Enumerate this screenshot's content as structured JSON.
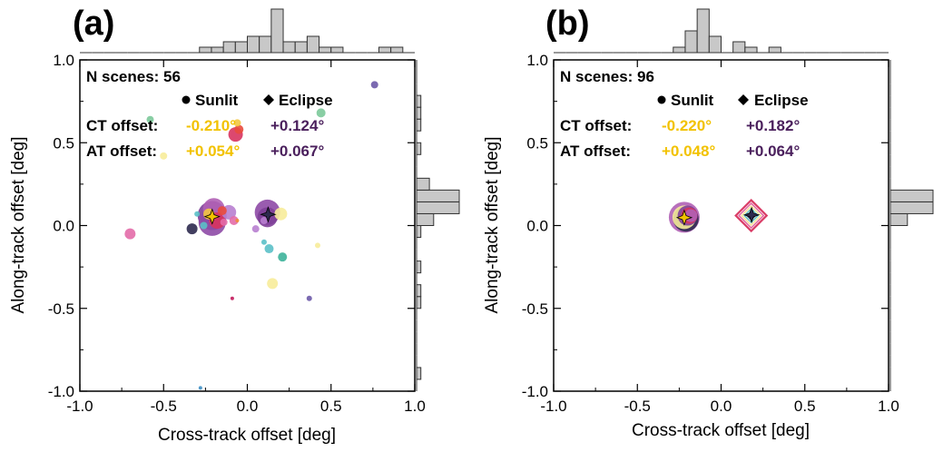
{
  "chart_data": [
    {
      "type": "scatter",
      "panel_label": "(a)",
      "xlabel": "Cross-track offset [deg]",
      "ylabel": "Along-track offset [deg]",
      "xlim": [
        -1.0,
        1.0
      ],
      "ylim": [
        -1.0,
        1.0
      ],
      "xticks": [
        "-1.0",
        "-0.5",
        "0.0",
        "0.5",
        "1.0"
      ],
      "yticks": [
        "-1.0",
        "-0.5",
        "0.0",
        "0.5",
        "1.0"
      ],
      "n_scenes_label": "N scenes: 56",
      "legend": {
        "sunlit": "Sunlit",
        "eclipse": "Eclipse"
      },
      "rows": [
        {
          "label": "CT offset:",
          "sunlit": "-0.210°",
          "eclipse": "+0.124°"
        },
        {
          "label": "AT offset:",
          "sunlit": "+0.054°",
          "eclipse": "+0.067°"
        }
      ],
      "mean_sunlit": {
        "x": -0.21,
        "y": 0.054
      },
      "mean_eclipse": {
        "x": 0.124,
        "y": 0.067
      },
      "points": [
        {
          "x": -0.21,
          "y": 0.06,
          "s": 16,
          "color": "#7e3f98",
          "m": "o"
        },
        {
          "x": -0.21,
          "y": 0.02,
          "s": 15,
          "color": "#8e4aa6",
          "m": "o"
        },
        {
          "x": -0.2,
          "y": 0.1,
          "s": 12,
          "color": "#b061b5",
          "m": "o"
        },
        {
          "x": -0.18,
          "y": 0.03,
          "s": 9,
          "color": "#d8345f",
          "m": "o"
        },
        {
          "x": -0.23,
          "y": 0.07,
          "s": 6,
          "color": "#f2c641",
          "m": "o"
        },
        {
          "x": -0.15,
          "y": 0.09,
          "s": 5,
          "color": "#e94b3c",
          "m": "o"
        },
        {
          "x": -0.14,
          "y": 0.02,
          "s": 4,
          "color": "#e36ba8",
          "m": "o"
        },
        {
          "x": -0.26,
          "y": 0.0,
          "s": 4,
          "color": "#5bc0c8",
          "m": "o"
        },
        {
          "x": -0.3,
          "y": 0.07,
          "s": 3,
          "color": "#5bc0c8",
          "m": "o"
        },
        {
          "x": -0.11,
          "y": 0.08,
          "s": 8,
          "color": "#b87fd0",
          "m": "o"
        },
        {
          "x": -0.08,
          "y": 0.03,
          "s": 5,
          "color": "#e36ba8",
          "m": "o"
        },
        {
          "x": -0.06,
          "y": 0.03,
          "s": 2,
          "color": "#f08c3a",
          "m": "o"
        },
        {
          "x": -0.33,
          "y": -0.02,
          "s": 6,
          "color": "#2e2a4f",
          "m": "o"
        },
        {
          "x": -0.07,
          "y": 0.55,
          "s": 8,
          "color": "#d8345f",
          "m": "o"
        },
        {
          "x": -0.05,
          "y": 0.58,
          "s": 5,
          "color": "#e94b3c",
          "m": "o"
        },
        {
          "x": -0.06,
          "y": 0.62,
          "s": 4,
          "color": "#f2c641",
          "m": "o"
        },
        {
          "x": -0.58,
          "y": 0.64,
          "s": 4,
          "color": "#7cc99a",
          "m": "o"
        },
        {
          "x": 0.76,
          "y": 0.85,
          "s": 4,
          "color": "#6d5aa8",
          "m": "o"
        },
        {
          "x": 0.44,
          "y": 0.68,
          "s": 5,
          "color": "#7cc99a",
          "m": "o"
        },
        {
          "x": -0.5,
          "y": 0.42,
          "s": 4,
          "color": "#f7ec9a",
          "m": "o"
        },
        {
          "x": 0.12,
          "y": 0.08,
          "s": 14,
          "color": "#8e4aa6",
          "m": "o"
        },
        {
          "x": 0.12,
          "y": 0.05,
          "s": 11,
          "color": "#7e3f98",
          "m": "o"
        },
        {
          "x": 0.2,
          "y": 0.07,
          "s": 7,
          "color": "#f7ec9a",
          "m": "o"
        },
        {
          "x": 0.1,
          "y": 0.03,
          "s": 4,
          "color": "#b87fd0",
          "m": "o"
        },
        {
          "x": -0.7,
          "y": -0.05,
          "s": 6,
          "color": "#e36ba8",
          "m": "o"
        },
        {
          "x": 0.05,
          "y": -0.02,
          "s": 4,
          "color": "#b87fd0",
          "m": "o"
        },
        {
          "x": 0.1,
          "y": -0.1,
          "s": 3,
          "color": "#5bc0c8",
          "m": "o"
        },
        {
          "x": 0.13,
          "y": -0.14,
          "s": 5,
          "color": "#5bc0c8",
          "m": "o"
        },
        {
          "x": 0.21,
          "y": -0.19,
          "s": 5,
          "color": "#3db39a",
          "m": "o"
        },
        {
          "x": 0.42,
          "y": -0.12,
          "s": 3,
          "color": "#f7ec9a",
          "m": "o"
        },
        {
          "x": 0.15,
          "y": -0.35,
          "s": 6,
          "color": "#f7ec9a",
          "m": "o"
        },
        {
          "x": -0.09,
          "y": -0.44,
          "s": 2,
          "color": "#c2185b",
          "m": "o"
        },
        {
          "x": 0.37,
          "y": -0.44,
          "s": 3,
          "color": "#6d5aa8",
          "m": "o"
        },
        {
          "x": -0.28,
          "y": -0.98,
          "s": 2,
          "color": "#3f8fc4",
          "m": "o"
        }
      ],
      "hist_top": {
        "edges": [
          -1.0,
          1.0
        ],
        "counts": [
          0,
          0,
          0,
          0,
          0,
          0,
          0,
          0,
          0,
          0,
          1,
          1,
          2,
          2,
          3,
          3,
          8,
          2,
          2,
          3,
          1,
          1,
          0,
          0,
          0,
          1,
          1,
          0
        ]
      },
      "hist_right": {
        "edges": [
          -1.0,
          1.0
        ],
        "counts": [
          0,
          1,
          0,
          0,
          0,
          0,
          0,
          1,
          1,
          0,
          1,
          0,
          0,
          1,
          4,
          10,
          10,
          3,
          0,
          0,
          1,
          0,
          1,
          1,
          1,
          0,
          0,
          0
        ]
      }
    },
    {
      "type": "scatter",
      "panel_label": "(b)",
      "xlabel": "Cross-track offset [deg]",
      "ylabel": "Along-track offset [deg]",
      "xlim": [
        -1.0,
        1.0
      ],
      "ylim": [
        -1.0,
        1.0
      ],
      "xticks": [
        "-1.0",
        "-0.5",
        "0.0",
        "0.5",
        "1.0"
      ],
      "yticks": [
        "-1.0",
        "-0.5",
        "0.0",
        "0.5",
        "1.0"
      ],
      "n_scenes_label": "N scenes: 96",
      "legend": {
        "sunlit": "Sunlit",
        "eclipse": "Eclipse"
      },
      "rows": [
        {
          "label": "CT offset:",
          "sunlit": "-0.220°",
          "eclipse": "+0.182°"
        },
        {
          "label": "AT offset:",
          "sunlit": "+0.048°",
          "eclipse": "+0.064°"
        }
      ],
      "mean_sunlit": {
        "x": -0.22,
        "y": 0.048
      },
      "mean_eclipse": {
        "x": 0.182,
        "y": 0.064
      },
      "points": [
        {
          "x": -0.22,
          "y": 0.05,
          "s": 17,
          "color": "#b061b5",
          "m": "o"
        },
        {
          "x": -0.21,
          "y": 0.04,
          "s": 14,
          "color": "#2e2a4f",
          "m": "o"
        },
        {
          "x": -0.22,
          "y": 0.05,
          "s": 13,
          "color": "#f7ec9a",
          "m": "o"
        },
        {
          "x": -0.2,
          "y": 0.06,
          "s": 11,
          "color": "#7e3f98",
          "m": "o"
        },
        {
          "x": -0.19,
          "y": 0.06,
          "s": 9,
          "color": "#d8345f",
          "m": "o"
        },
        {
          "x": -0.18,
          "y": 0.06,
          "s": 7,
          "color": "#b061b5",
          "m": "o"
        },
        {
          "x": 0.18,
          "y": 0.06,
          "s": 19,
          "color": "#d8345f",
          "m": "d"
        },
        {
          "x": 0.18,
          "y": 0.06,
          "s": 15,
          "color": "#e36ba8",
          "m": "d"
        },
        {
          "x": 0.18,
          "y": 0.06,
          "s": 12,
          "color": "#f7ec9a",
          "m": "d"
        },
        {
          "x": 0.18,
          "y": 0.06,
          "s": 9,
          "color": "#5bc0c8",
          "m": "d"
        },
        {
          "x": 0.18,
          "y": 0.06,
          "s": 6,
          "color": "#2e2a4f",
          "m": "d"
        }
      ],
      "hist_top": {
        "edges": [
          -1.0,
          1.0
        ],
        "counts": [
          0,
          0,
          0,
          0,
          0,
          0,
          0,
          0,
          0,
          0,
          1,
          4,
          8,
          3,
          0,
          2,
          1,
          0,
          1,
          0,
          0,
          0,
          0,
          0,
          0,
          0,
          0,
          0
        ]
      },
      "hist_right": {
        "edges": [
          -1.0,
          1.0
        ],
        "counts": [
          0,
          0,
          0,
          0,
          0,
          0,
          0,
          0,
          0,
          0,
          0,
          0,
          0,
          0,
          2,
          5,
          5,
          0,
          0,
          0,
          0,
          0,
          0,
          0,
          0,
          0,
          0,
          0
        ]
      }
    }
  ],
  "colors": {
    "sunlit_text": "#f2c200",
    "eclipse_text": "#4a1f5c",
    "hist_fill": "#c8c8c8"
  }
}
